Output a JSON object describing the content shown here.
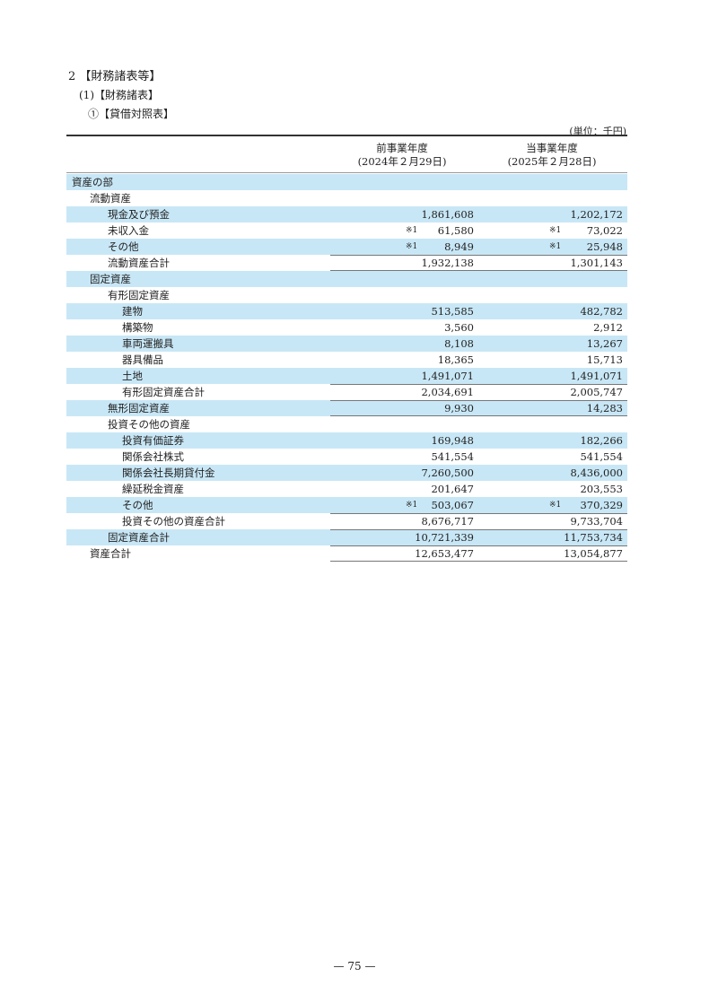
{
  "headings": {
    "h1": "2 【財務諸表等】",
    "h2": "(1)【財務諸表】",
    "h3": "①【貸借対照表】",
    "unit": "(単位：千円)"
  },
  "columns": [
    {
      "title": "前事業年度",
      "date": "(2024年２月29日)"
    },
    {
      "title": "当事業年度",
      "date": "(2025年２月28日)"
    }
  ],
  "rows": [
    {
      "label": "資産の部",
      "indent": 0,
      "v1": "",
      "v2": ""
    },
    {
      "label": "流動資産",
      "indent": 1,
      "v1": "",
      "v2": ""
    },
    {
      "label": "現金及び預金",
      "indent": 2,
      "v1": "1,861,608",
      "v2": "1,202,172"
    },
    {
      "label": "未収入金",
      "indent": 2,
      "v1": "61,580",
      "v2": "73,022",
      "m1": "※1",
      "m2": "※1"
    },
    {
      "label": "その他",
      "indent": 2,
      "v1": "8,949",
      "v2": "25,948",
      "m1": "※1",
      "m2": "※1"
    },
    {
      "label": "流動資産合計",
      "indent": 2,
      "v1": "1,932,138",
      "v2": "1,301,143",
      "total": true
    },
    {
      "label": "固定資産",
      "indent": 1,
      "v1": "",
      "v2": ""
    },
    {
      "label": "有形固定資産",
      "indent": 2,
      "v1": "",
      "v2": ""
    },
    {
      "label": "建物",
      "indent": 3,
      "v1": "513,585",
      "v2": "482,782"
    },
    {
      "label": "構築物",
      "indent": 3,
      "v1": "3,560",
      "v2": "2,912"
    },
    {
      "label": "車両運搬具",
      "indent": 3,
      "v1": "8,108",
      "v2": "13,267"
    },
    {
      "label": "器具備品",
      "indent": 3,
      "v1": "18,365",
      "v2": "15,713"
    },
    {
      "label": "土地",
      "indent": 3,
      "v1": "1,491,071",
      "v2": "1,491,071"
    },
    {
      "label": "有形固定資産合計",
      "indent": 3,
      "v1": "2,034,691",
      "v2": "2,005,747",
      "total": true
    },
    {
      "label": "無形固定資産",
      "indent": 2,
      "v1": "9,930",
      "v2": "14,283",
      "total": true
    },
    {
      "label": "投資その他の資産",
      "indent": 2,
      "v1": "",
      "v2": ""
    },
    {
      "label": "投資有価証券",
      "indent": 3,
      "v1": "169,948",
      "v2": "182,266"
    },
    {
      "label": "関係会社株式",
      "indent": 3,
      "v1": "541,554",
      "v2": "541,554"
    },
    {
      "label": "関係会社長期貸付金",
      "indent": 3,
      "v1": "7,260,500",
      "v2": "8,436,000"
    },
    {
      "label": "繰延税金資産",
      "indent": 3,
      "v1": "201,647",
      "v2": "203,553"
    },
    {
      "label": "その他",
      "indent": 3,
      "v1": "503,067",
      "v2": "370,329",
      "m1": "※1",
      "m2": "※1"
    },
    {
      "label": "投資その他の資産合計",
      "indent": 3,
      "v1": "8,676,717",
      "v2": "9,733,704",
      "total": true
    },
    {
      "label": "固定資産合計",
      "indent": 2,
      "v1": "10,721,339",
      "v2": "11,753,734",
      "total": true
    },
    {
      "label": "資産合計",
      "indent": 1,
      "v1": "12,653,477",
      "v2": "13,054,877",
      "total": true,
      "last": true
    }
  ],
  "page_number": "— 75 —",
  "colors": {
    "shade": "#c8e7f6"
  }
}
